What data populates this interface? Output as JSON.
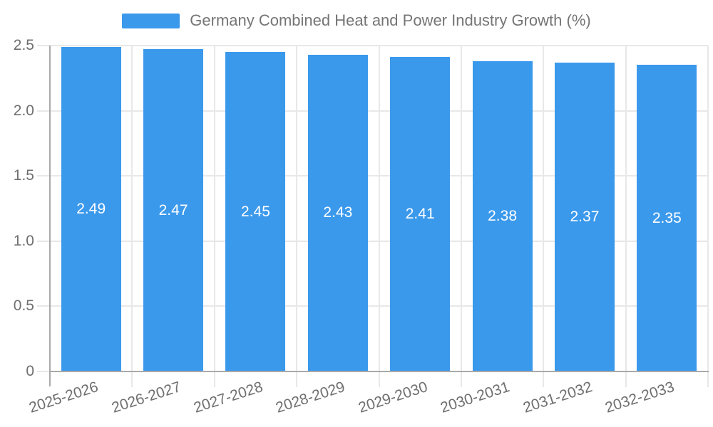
{
  "chart_data": {
    "type": "bar",
    "title": "Germany Combined Heat and Power Industry Growth (%)",
    "categories": [
      "2025-2026",
      "2026-2027",
      "2027-2028",
      "2028-2029",
      "2029-2030",
      "2030-2031",
      "2031-2032",
      "2032-2033"
    ],
    "values": [
      2.49,
      2.47,
      2.45,
      2.43,
      2.41,
      2.38,
      2.37,
      2.35
    ],
    "value_labels": [
      "2.49",
      "2.47",
      "2.45",
      "2.43",
      "2.41",
      "2.38",
      "2.37",
      "2.35"
    ],
    "xlabel": "",
    "ylabel": "",
    "ylim": [
      0,
      2.5
    ],
    "yticks": [
      0,
      0.5,
      1,
      1.5,
      2,
      2.5
    ],
    "ytick_labels": [
      "0",
      "0.5",
      "1.0",
      "1.5",
      "2.0",
      "2.5"
    ],
    "grid": true,
    "legend_position": "top-center",
    "colors": {
      "bar": "#3b99ec",
      "grid": "#e8e8e8",
      "axis": "#a9a9a9",
      "tick_text": "#6f6f6f",
      "title_text": "#757575",
      "bar_label": "#ffffff",
      "background": "#ffffff"
    }
  }
}
